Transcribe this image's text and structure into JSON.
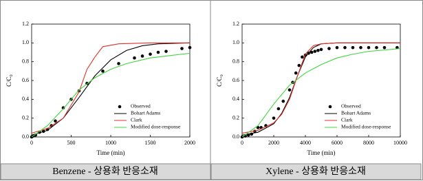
{
  "chart_data": [
    {
      "type": "line",
      "title": "Benzene - 상용화 반응소재",
      "xlabel": "Time (min)",
      "ylabel": "C/C₀",
      "xlim": [
        0,
        2000
      ],
      "xticks": [
        0,
        500,
        1000,
        1500,
        2000
      ],
      "ylim": [
        0,
        1.2
      ],
      "yticks": [
        {
          "value": 0,
          "label": "0.0"
        },
        {
          "value": 0.2,
          "label": "0.2"
        },
        {
          "value": 0.4,
          "label": "0.4"
        },
        {
          "value": 0.6,
          "label": "0.6"
        },
        {
          "value": 0.8,
          "label": "0.8"
        },
        {
          "value": 1,
          "label": "1.0"
        },
        {
          "value": 1.2,
          "label": "1.2"
        }
      ],
      "legend": "lower right",
      "series": [
        {
          "name": "Observed",
          "style": "scatter",
          "color": "#000000",
          "x": [
            0,
            20,
            50,
            100,
            150,
            200,
            250,
            300,
            400,
            500,
            600,
            700,
            900,
            1100,
            1300,
            1400,
            1500,
            1600,
            1700,
            1900,
            2000
          ],
          "values": [
            0,
            0.01,
            0.02,
            0.05,
            0.06,
            0.08,
            0.12,
            0.17,
            0.31,
            0.4,
            0.49,
            0.57,
            0.7,
            0.78,
            0.84,
            0.86,
            0.88,
            0.9,
            0.91,
            0.94,
            0.95
          ]
        },
        {
          "name": "Bohart Adams",
          "style": "line",
          "color": "#000000",
          "x": [
            0,
            200,
            400,
            600,
            800,
            1000,
            1200,
            1400,
            1600,
            2000
          ],
          "values": [
            0.02,
            0.07,
            0.2,
            0.42,
            0.65,
            0.82,
            0.92,
            0.97,
            0.99,
            1
          ]
        },
        {
          "name": "Clark",
          "style": "line",
          "color": "#e0302a",
          "x": [
            0,
            200,
            400,
            600,
            700,
            800,
            900,
            1100,
            1500,
            2000
          ],
          "values": [
            0.04,
            0.09,
            0.2,
            0.48,
            0.72,
            0.85,
            0.96,
            0.99,
            1,
            1
          ]
        },
        {
          "name": "Modified dose-response",
          "style": "line",
          "color": "#3fd43f",
          "x": [
            0,
            200,
            400,
            600,
            800,
            1000,
            1200,
            1500,
            2000
          ],
          "values": [
            0,
            0.12,
            0.3,
            0.5,
            0.63,
            0.72,
            0.78,
            0.84,
            0.89
          ]
        }
      ]
    },
    {
      "type": "line",
      "title": "Xylene - 상용화 반응소재",
      "xlabel": "Time (min)",
      "ylabel": "C/C₀",
      "xlim": [
        0,
        10000
      ],
      "xticks": [
        0,
        2000,
        4000,
        6000,
        8000,
        10000
      ],
      "ylim": [
        0,
        1.2
      ],
      "yticks": [
        {
          "value": 0,
          "label": "0.0"
        },
        {
          "value": 0.2,
          "label": "0.2"
        },
        {
          "value": 0.4,
          "label": "0.4"
        },
        {
          "value": 0.6,
          "label": "0.6"
        },
        {
          "value": 0.8,
          "label": "0.8"
        },
        {
          "value": 1,
          "label": "1.0"
        },
        {
          "value": 1.2,
          "label": "1.2"
        }
      ],
      "legend": "lower right",
      "series": [
        {
          "name": "Observed",
          "style": "scatter",
          "color": "#000000",
          "x": [
            0,
            200,
            400,
            600,
            800,
            1000,
            1200,
            1500,
            2000,
            2300,
            2600,
            3000,
            3200,
            3400,
            3600,
            3800,
            4000,
            4200,
            4400,
            4600,
            4800,
            5000,
            5500,
            6000,
            6500,
            7000,
            7500,
            8000,
            8500,
            9000,
            9800
          ],
          "values": [
            0,
            0.01,
            0.02,
            0.03,
            0.06,
            0.1,
            0.1,
            0.12,
            0.2,
            0.3,
            0.38,
            0.5,
            0.58,
            0.68,
            0.76,
            0.85,
            0.87,
            0.89,
            0.9,
            0.91,
            0.92,
            0.93,
            0.94,
            0.95,
            0.95,
            0.95,
            0.95,
            0.95,
            0.95,
            0.95,
            0.95
          ]
        },
        {
          "name": "Bohart Adams",
          "style": "line",
          "color": "#000000",
          "x": [
            0,
            1000,
            2000,
            2500,
            3000,
            3500,
            4000,
            4500,
            5000,
            6000,
            10000
          ],
          "values": [
            0.02,
            0.05,
            0.14,
            0.25,
            0.42,
            0.65,
            0.85,
            0.95,
            0.99,
            1,
            1
          ]
        },
        {
          "name": "Clark",
          "style": "line",
          "color": "#e0302a",
          "x": [
            0,
            1000,
            2000,
            2500,
            3000,
            3500,
            4000,
            4500,
            5000,
            6000,
            10000
          ],
          "values": [
            0.04,
            0.07,
            0.15,
            0.24,
            0.4,
            0.65,
            0.88,
            0.97,
            0.99,
            1,
            1
          ]
        },
        {
          "name": "Modified dose-response",
          "style": "line",
          "color": "#3fd43f",
          "x": [
            0,
            1000,
            2000,
            3000,
            4000,
            5000,
            6000,
            7000,
            8000,
            10000
          ],
          "values": [
            0,
            0.12,
            0.35,
            0.55,
            0.68,
            0.77,
            0.84,
            0.88,
            0.91,
            0.94
          ]
        }
      ]
    }
  ]
}
